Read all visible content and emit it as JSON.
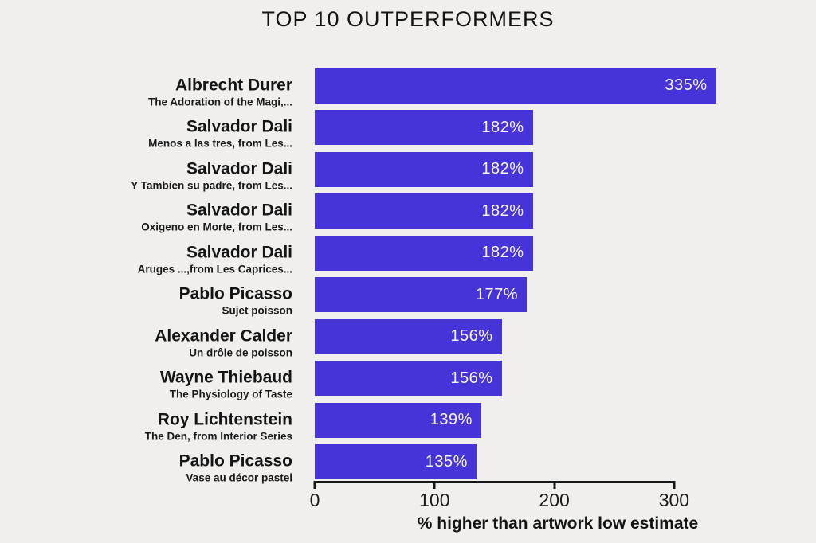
{
  "title": "TOP 10 OUTPERFORMERS",
  "colors": {
    "background": "#f0efed",
    "bar_fill": "#4634d9",
    "bar_value_text": "#f6f4ef",
    "text": "#141414",
    "axis": "#161616"
  },
  "chart_data": {
    "type": "bar",
    "orientation": "horizontal",
    "title": "TOP 10 OUTPERFORMERS",
    "xlabel": "% higher than artwork low estimate",
    "xlim": [
      0,
      340
    ],
    "x_ticks": [
      "0",
      "100",
      "200",
      "300"
    ],
    "x_tick_values": [
      0,
      100,
      200,
      300
    ],
    "grid": false,
    "legend": false,
    "bars": [
      {
        "artist": "Albrecht Durer",
        "artwork": "The Adoration of the Magi,...",
        "value": 335,
        "label": "335%"
      },
      {
        "artist": "Salvador Dali",
        "artwork": "Menos a las tres, from Les...",
        "value": 182,
        "label": "182%"
      },
      {
        "artist": "Salvador Dali",
        "artwork": "Y Tambien su padre, from Les...",
        "value": 182,
        "label": "182%"
      },
      {
        "artist": "Salvador Dali",
        "artwork": "Oxigeno en Morte, from Les...",
        "value": 182,
        "label": "182%"
      },
      {
        "artist": "Salvador Dali",
        "artwork": "Aruges ...,from Les Caprices...",
        "value": 182,
        "label": "182%"
      },
      {
        "artist": "Pablo Picasso",
        "artwork": "Sujet poisson",
        "value": 177,
        "label": "177%"
      },
      {
        "artist": "Alexander Calder",
        "artwork": "Un drôle de poisson",
        "value": 156,
        "label": "156%"
      },
      {
        "artist": "Wayne Thiebaud",
        "artwork": "The Physiology of Taste",
        "value": 156,
        "label": "156%"
      },
      {
        "artist": "Roy Lichtenstein",
        "artwork": "The Den, from Interior Series",
        "value": 139,
        "label": "139%"
      },
      {
        "artist": "Pablo Picasso",
        "artwork": "Vase au décor pastel",
        "value": 135,
        "label": "135%"
      }
    ]
  }
}
